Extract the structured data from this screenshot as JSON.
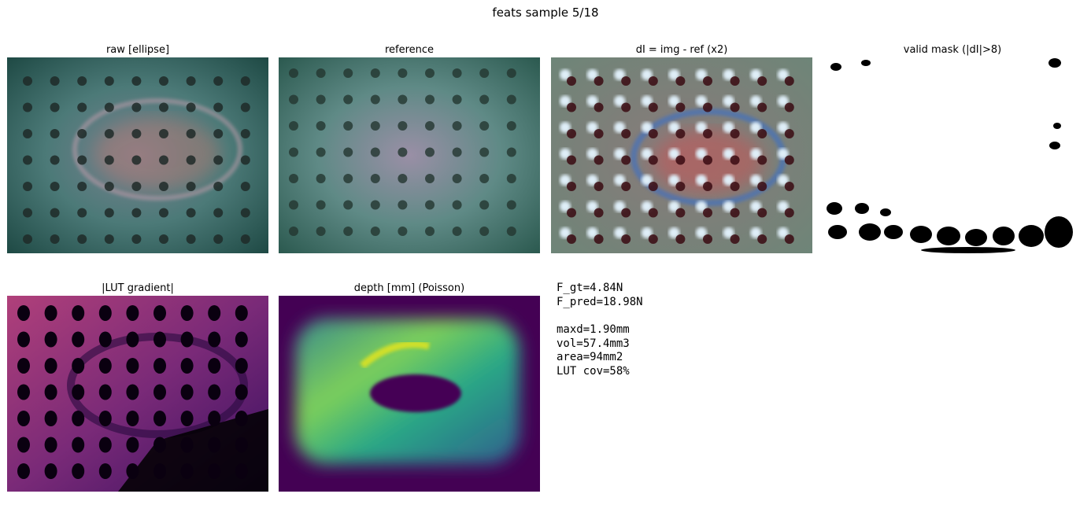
{
  "title": "feats sample 5/18",
  "panels": [
    {
      "title": "raw  [ellipse]"
    },
    {
      "title": "reference"
    },
    {
      "title": "dI = img - ref (x2)"
    },
    {
      "title": "valid mask (|dI|>8)"
    },
    {
      "title": "|LUT gradient|"
    },
    {
      "title": "depth [mm] (Poisson)"
    }
  ],
  "stats": {
    "force": [
      "F_gt=4.84N",
      "F_pred=18.98N"
    ],
    "metrics": [
      "maxd=1.90mm",
      "vol=57.4mm3",
      "area=94mm2",
      "LUT cov=58%"
    ]
  }
}
